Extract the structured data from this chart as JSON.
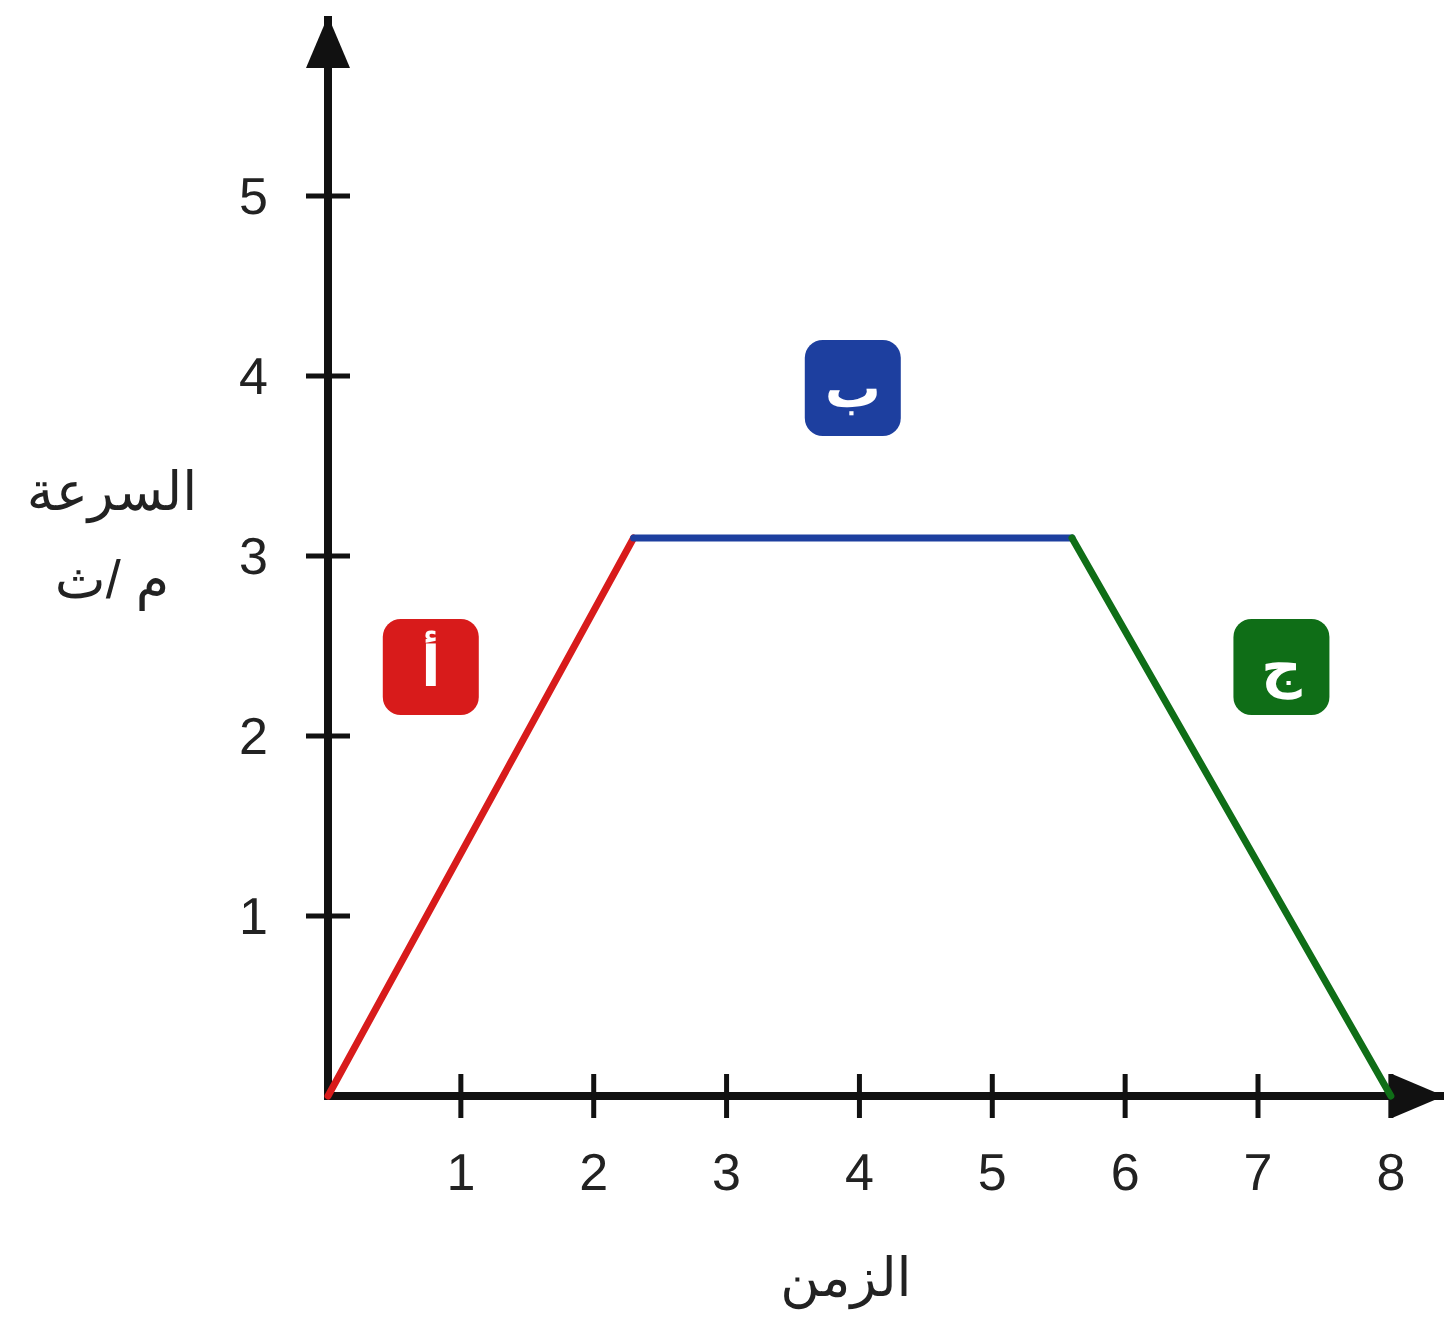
{
  "chart_data": {
    "type": "line",
    "xlabel": "الزمن",
    "ylabel": "السرعة\nم /ث",
    "xlim": [
      0,
      8.4
    ],
    "ylim": [
      0,
      6
    ],
    "xticks": [
      1,
      2,
      3,
      4,
      5,
      6,
      7,
      8
    ],
    "yticks": [
      1,
      2,
      3,
      4,
      5
    ],
    "line_style": "solid",
    "series": [
      {
        "name": "أ",
        "color": "#d81b1b",
        "x": [
          0,
          2.3
        ],
        "values": [
          0,
          3.1
        ]
      },
      {
        "name": "ب",
        "color": "#1d3f9f",
        "x": [
          2.3,
          5.6
        ],
        "values": [
          3.1,
          3.1
        ]
      },
      {
        "name": "ج",
        "color": "#0f6e17",
        "x": [
          5.6,
          8
        ],
        "values": [
          3.1,
          0
        ]
      }
    ]
  }
}
